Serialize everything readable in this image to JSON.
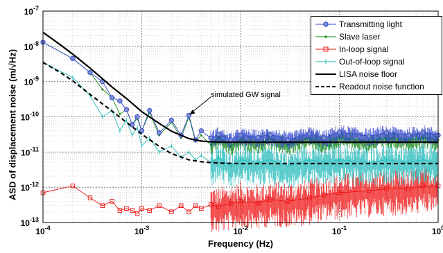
{
  "chart_data": {
    "type": "line",
    "xlabel": "Frequency (Hz)",
    "ylabel": "ASD of displacement noise (m/√Hz)",
    "xscale": "log",
    "yscale": "log",
    "xlim": [
      0.0001,
      1
    ],
    "ylim": [
      1e-13,
      1e-07
    ],
    "grid": true,
    "legend_position": "top-right",
    "x_ticks": [
      {
        "value": 0.0001,
        "base": "10",
        "exp": "-4"
      },
      {
        "value": 0.001,
        "base": "10",
        "exp": "-3"
      },
      {
        "value": 0.01,
        "base": "10",
        "exp": "-2"
      },
      {
        "value": 0.1,
        "base": "10",
        "exp": "-1"
      },
      {
        "value": 1,
        "base": "10",
        "exp": "0"
      }
    ],
    "y_ticks": [
      {
        "value": 1e-07,
        "base": "10",
        "exp": "-7"
      },
      {
        "value": 1e-08,
        "base": "10",
        "exp": "-8"
      },
      {
        "value": 1e-09,
        "base": "10",
        "exp": "-9"
      },
      {
        "value": 1e-10,
        "base": "10",
        "exp": "-10"
      },
      {
        "value": 1e-11,
        "base": "10",
        "exp": "-11"
      },
      {
        "value": 1e-12,
        "base": "10",
        "exp": "-12"
      },
      {
        "value": 1e-13,
        "base": "10",
        "exp": "-13"
      }
    ],
    "annotations": [
      {
        "text": "simulated GW signal",
        "x": 0.003,
        "y": 1.1e-10
      }
    ],
    "series": [
      {
        "name": "Transmitting light",
        "color": "#3344cc",
        "marker": "circle",
        "x": [
          0.0001,
          0.0002,
          0.0003,
          0.0004,
          0.0005,
          0.0006,
          0.0007,
          0.0008,
          0.0009,
          0.001,
          0.0012,
          0.0015,
          0.002,
          0.0025,
          0.003,
          0.0035,
          0.004,
          0.005,
          0.006,
          0.008,
          0.01,
          0.015,
          0.02,
          0.03,
          0.05,
          0.07,
          0.1,
          0.2,
          0.3,
          0.5,
          0.7,
          1.0
        ],
        "y": [
          1.3e-08,
          4.5e-09,
          1.8e-09,
          1e-09,
          3.5e-10,
          2.8e-10,
          1.6e-10,
          6e-11,
          1e-10,
          4e-11,
          1.5e-10,
          3.5e-11,
          8e-11,
          3e-11,
          1.1e-10,
          2.2e-11,
          4e-11,
          2.5e-11,
          3.2e-11,
          2.2e-11,
          3e-11,
          2.6e-11,
          3.2e-11,
          2.2e-11,
          3.3e-11,
          2.5e-11,
          3.6e-11,
          2.8e-11,
          3.5e-11,
          3e-11,
          3.6e-11,
          3e-11
        ]
      },
      {
        "name": "Slave laser",
        "color": "#118811",
        "marker": "dot",
        "x": [
          0.0001,
          0.0002,
          0.0003,
          0.0004,
          0.0005,
          0.0006,
          0.0007,
          0.0008,
          0.0009,
          0.001,
          0.0012,
          0.0015,
          0.002,
          0.0025,
          0.003,
          0.0035,
          0.004,
          0.005,
          0.006,
          0.008,
          0.01,
          0.015,
          0.02,
          0.03,
          0.05,
          0.07,
          0.1,
          0.2,
          0.3,
          0.5,
          0.7,
          1.0
        ],
        "y": [
          1.3e-08,
          4.5e-09,
          1.8e-09,
          6e-10,
          3.5e-10,
          1.2e-10,
          1.6e-10,
          6e-11,
          9e-11,
          4e-11,
          1.3e-10,
          3e-11,
          7e-11,
          2.5e-11,
          1e-10,
          2e-11,
          3e-11,
          1.6e-11,
          2.5e-11,
          1.5e-11,
          2.2e-11,
          1.8e-11,
          2.4e-11,
          1.6e-11,
          2.5e-11,
          1.8e-11,
          2.6e-11,
          2e-11,
          2.5e-11,
          2.2e-11,
          2.6e-11,
          2.2e-11
        ]
      },
      {
        "name": "In-loop signal",
        "color": "#ee1111",
        "marker": "square",
        "x": [
          0.0001,
          0.0002,
          0.0003,
          0.0004,
          0.0005,
          0.0006,
          0.0007,
          0.0008,
          0.0009,
          0.001,
          0.0012,
          0.0015,
          0.002,
          0.0025,
          0.003,
          0.0035,
          0.004,
          0.005,
          0.006,
          0.008,
          0.01,
          0.015,
          0.02,
          0.03,
          0.05,
          0.07,
          0.1,
          0.2,
          0.3,
          0.5,
          0.7,
          1.0
        ],
        "y": [
          7e-13,
          1.1e-12,
          5e-13,
          3e-13,
          4e-13,
          2.2e-13,
          2.5e-13,
          2.2e-13,
          1.8e-13,
          2.5e-13,
          2.2e-13,
          3e-13,
          2e-13,
          3e-13,
          2e-13,
          3e-13,
          2.5e-13,
          3.2e-13,
          2.8e-13,
          3.5e-13,
          4e-13,
          3.5e-13,
          4.5e-13,
          4e-13,
          5e-13,
          6e-13,
          7e-13,
          8e-13,
          9e-13,
          9e-13,
          1.1e-12,
          1.1e-12
        ]
      },
      {
        "name": "Out-of-loop signal",
        "color": "#22bbbb",
        "marker": "plus",
        "x": [
          0.0001,
          0.0002,
          0.0003,
          0.0004,
          0.0005,
          0.0006,
          0.0007,
          0.0008,
          0.0009,
          0.001,
          0.0012,
          0.0015,
          0.002,
          0.0025,
          0.003,
          0.0035,
          0.004,
          0.005,
          0.006,
          0.008,
          0.01,
          0.015,
          0.02,
          0.03,
          0.05,
          0.07,
          0.1,
          0.2,
          0.3,
          0.5,
          0.7,
          1.0
        ],
        "y": [
          3.5e-09,
          1.3e-09,
          4e-10,
          1e-10,
          1.5e-10,
          4e-11,
          8e-11,
          3e-11,
          5e-11,
          1.5e-11,
          2.5e-11,
          1e-11,
          1.5e-11,
          7e-12,
          1e-11,
          6e-12,
          8e-12,
          5e-12,
          7e-12,
          4e-12,
          6e-12,
          5e-12,
          6e-12,
          4e-12,
          6e-12,
          5e-12,
          6e-12,
          5e-12,
          6e-12,
          5e-12,
          6e-12,
          5e-12
        ]
      },
      {
        "name": "LISA noise floor",
        "color": "#000000",
        "marker": "none",
        "style": "solid",
        "x": [
          0.0001,
          0.00015,
          0.0002,
          0.0003,
          0.0005,
          0.0007,
          0.001,
          0.0015,
          0.002,
          0.003,
          0.004,
          0.005,
          0.007,
          0.01,
          0.02,
          0.05,
          0.1,
          0.2,
          0.5,
          1.0
        ],
        "y": [
          2.5e-08,
          1.1e-08,
          6e-09,
          2.4e-09,
          7e-10,
          3.3e-10,
          1.4e-10,
          6.5e-11,
          3.9e-11,
          2.4e-11,
          2.05e-11,
          1.95e-11,
          1.9e-11,
          1.9e-11,
          1.9e-11,
          1.9e-11,
          1.9e-11,
          1.9e-11,
          1.9e-11,
          1.9e-11
        ]
      },
      {
        "name": "Readout noise function",
        "color": "#000000",
        "marker": "none",
        "style": "dashed",
        "x": [
          0.0001,
          0.00015,
          0.0002,
          0.0003,
          0.0005,
          0.0007,
          0.001,
          0.0015,
          0.002,
          0.003,
          0.004,
          0.005,
          0.007,
          0.01,
          0.02,
          0.05,
          0.1,
          0.2,
          0.5,
          1.0
        ],
        "y": [
          3.5e-09,
          1.8e-09,
          1.05e-09,
          4.3e-10,
          1.45e-10,
          7e-11,
          3.2e-11,
          1.45e-11,
          9e-12,
          6e-12,
          5.3e-12,
          5e-12,
          4.8e-12,
          4.7e-12,
          4.7e-12,
          4.7e-12,
          4.7e-12,
          4.7e-12,
          4.7e-12,
          4.7e-12
        ]
      }
    ]
  }
}
